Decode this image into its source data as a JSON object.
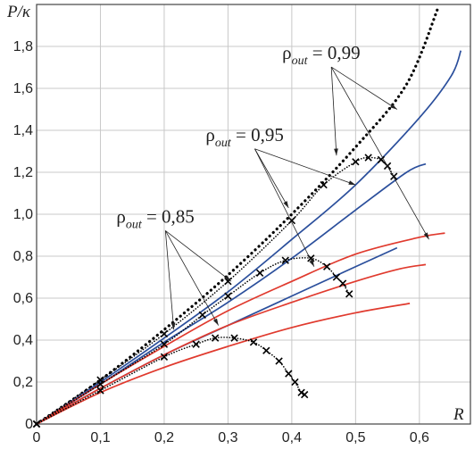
{
  "chart_data": {
    "type": "line",
    "title": "",
    "xlabel": "R",
    "ylabel": "P/κ",
    "xlim": [
      0,
      0.68
    ],
    "ylim": [
      0,
      2.0
    ],
    "x_ticks": [
      0,
      0.1,
      0.2,
      0.3,
      0.4,
      0.5,
      0.6
    ],
    "x_tick_labels": [
      "0",
      "0,1",
      "0,2",
      "0,3",
      "0,4",
      "0,5",
      "0,6"
    ],
    "y_ticks": [
      0,
      0.2,
      0.4,
      0.6,
      0.8,
      1.0,
      1.2,
      1.4,
      1.6,
      1.8
    ],
    "y_tick_labels": [
      "0",
      "0,2",
      "0,4",
      "0,6",
      "0,8",
      "1,0",
      "1,2",
      "1,4",
      "1,6",
      "1,8"
    ],
    "grid": true,
    "annotations": [
      {
        "symbol": "ρ",
        "sub": "out",
        "rest": " = 0,99",
        "text_x": 0.385,
        "text_y": 1.74,
        "targets": [
          [
            0.565,
            1.5
          ],
          [
            0.47,
            1.28
          ],
          [
            0.615,
            0.88
          ]
        ]
      },
      {
        "symbol": "ρ",
        "sub": "out",
        "rest": " = 0,95",
        "text_x": 0.265,
        "text_y": 1.35,
        "targets": [
          [
            0.5,
            1.14
          ],
          [
            0.395,
            1.03
          ],
          [
            0.435,
            0.75
          ]
        ]
      },
      {
        "symbol": "ρ",
        "sub": "out",
        "rest": " = 0,85",
        "text_x": 0.125,
        "text_y": 0.96,
        "targets": [
          [
            0.305,
            0.68
          ],
          [
            0.215,
            0.45
          ],
          [
            0.285,
            0.47
          ]
        ]
      }
    ],
    "series": [
      {
        "color": "#000000",
        "style": "dotted-thick",
        "x": [
          0,
          0.1,
          0.2,
          0.3,
          0.4,
          0.5,
          0.58,
          0.63
        ],
        "y": [
          0,
          0.21,
          0.45,
          0.71,
          1.0,
          1.32,
          1.62,
          1.99
        ]
      },
      {
        "color": "#2b4f9c",
        "style": "solid",
        "x": [
          0,
          0.1,
          0.2,
          0.3,
          0.4,
          0.5,
          0.6,
          0.65,
          0.665
        ],
        "y": [
          0,
          0.2,
          0.41,
          0.63,
          0.88,
          1.14,
          1.46,
          1.66,
          1.78
        ]
      },
      {
        "color": "#2b4f9c",
        "style": "solid",
        "x": [
          0,
          0.1,
          0.2,
          0.3,
          0.4,
          0.5,
          0.58,
          0.61
        ],
        "y": [
          0,
          0.19,
          0.39,
          0.58,
          0.79,
          1.02,
          1.2,
          1.24
        ]
      },
      {
        "color": "#2b4f9c",
        "style": "solid",
        "x": [
          0,
          0.1,
          0.2,
          0.3,
          0.4,
          0.5,
          0.565
        ],
        "y": [
          0,
          0.17,
          0.33,
          0.47,
          0.61,
          0.75,
          0.84
        ]
      },
      {
        "color": "#e03a2e",
        "style": "solid",
        "x": [
          0,
          0.1,
          0.2,
          0.3,
          0.4,
          0.5,
          0.6,
          0.64
        ],
        "y": [
          0,
          0.19,
          0.37,
          0.54,
          0.68,
          0.81,
          0.89,
          0.91
        ]
      },
      {
        "color": "#e03a2e",
        "style": "solid",
        "x": [
          0,
          0.1,
          0.2,
          0.3,
          0.4,
          0.5,
          0.57,
          0.61
        ],
        "y": [
          0,
          0.17,
          0.33,
          0.47,
          0.58,
          0.68,
          0.74,
          0.76
        ]
      },
      {
        "color": "#e03a2e",
        "style": "solid",
        "x": [
          0,
          0.1,
          0.2,
          0.3,
          0.4,
          0.5,
          0.585
        ],
        "y": [
          0,
          0.15,
          0.27,
          0.37,
          0.46,
          0.53,
          0.575
        ]
      },
      {
        "color": "#000000",
        "style": "dotted-marked",
        "x": [
          0,
          0.1,
          0.2,
          0.3,
          0.4,
          0.45,
          0.5,
          0.52,
          0.54,
          0.55,
          0.56
        ],
        "y": [
          0,
          0.21,
          0.43,
          0.68,
          0.97,
          1.14,
          1.25,
          1.27,
          1.26,
          1.23,
          1.18
        ]
      },
      {
        "color": "#000000",
        "style": "dotted-marked",
        "x": [
          0,
          0.1,
          0.2,
          0.26,
          0.3,
          0.35,
          0.39,
          0.43,
          0.455,
          0.47,
          0.48,
          0.49
        ],
        "y": [
          0,
          0.19,
          0.38,
          0.52,
          0.61,
          0.72,
          0.78,
          0.79,
          0.75,
          0.7,
          0.67,
          0.62
        ]
      },
      {
        "color": "#000000",
        "style": "dotted-marked",
        "x": [
          0,
          0.1,
          0.2,
          0.25,
          0.28,
          0.31,
          0.34,
          0.36,
          0.38,
          0.395,
          0.405,
          0.415,
          0.42
        ],
        "y": [
          0,
          0.16,
          0.32,
          0.38,
          0.41,
          0.41,
          0.39,
          0.35,
          0.3,
          0.24,
          0.2,
          0.15,
          0.14
        ]
      }
    ]
  }
}
